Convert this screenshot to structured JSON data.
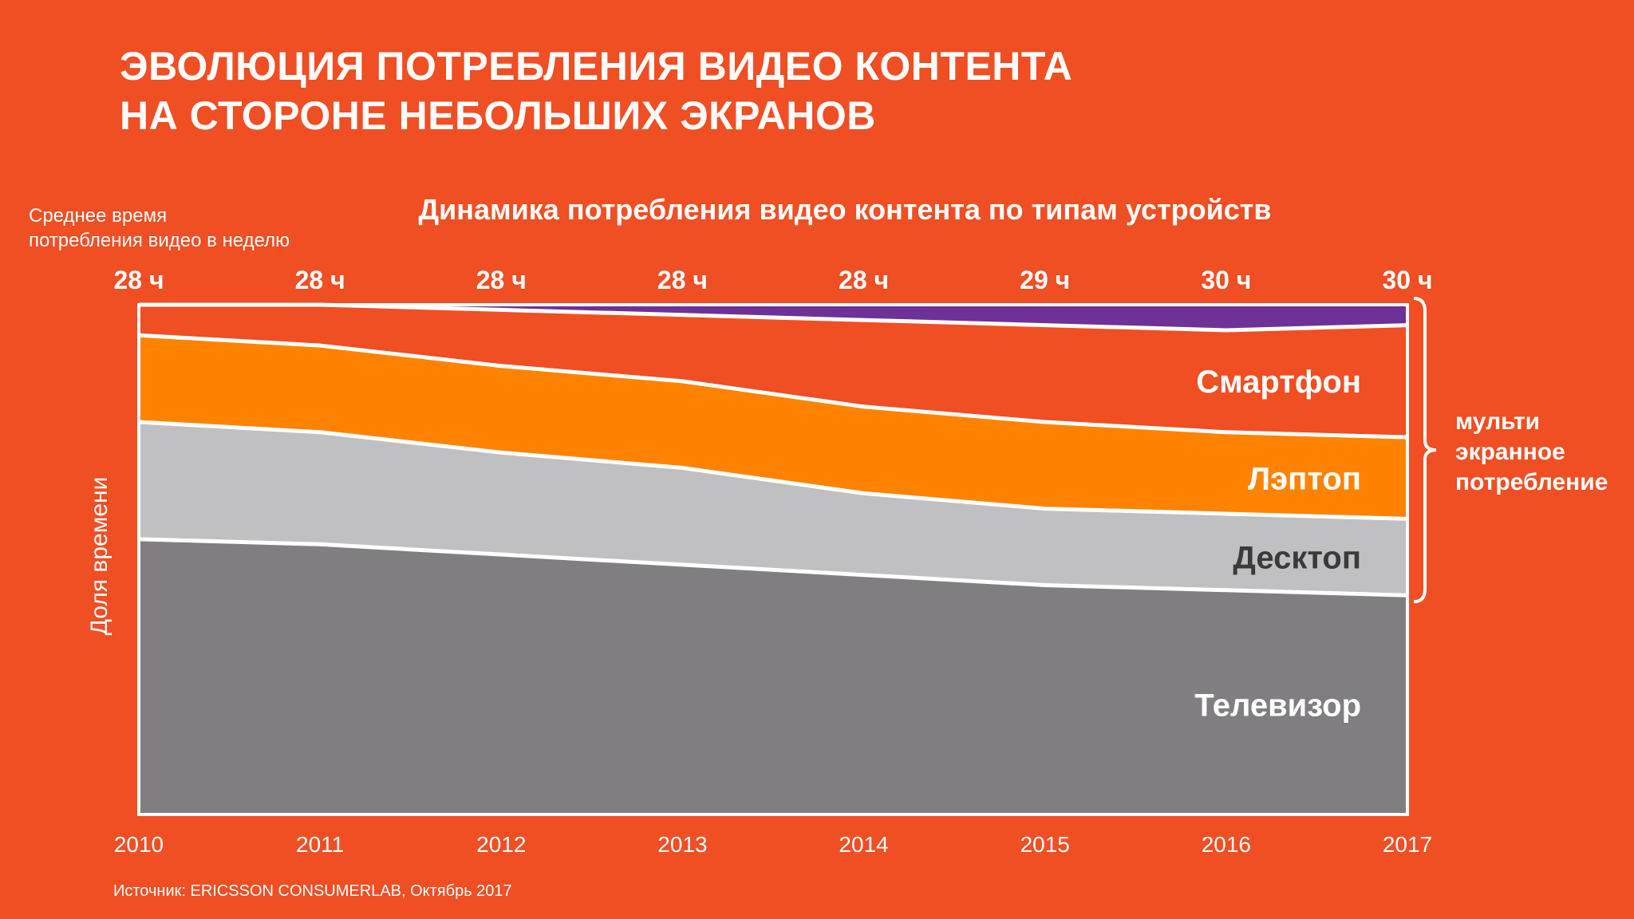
{
  "title": {
    "line1": "ЭВОЛЮЦИЯ ПОТРЕБЛЕНИЯ ВИДЕО КОНТЕНТА",
    "line2": "НА СТОРОНЕ НЕБОЛЬШИХ ЭКРАНОВ"
  },
  "colors": {
    "background": "#f04e23",
    "tv": "#807e81",
    "desktop": "#c0bfc1",
    "laptop": "#ff8300",
    "smartphone": "#f04e23",
    "tablet": "#6e3198",
    "separator": "#ffffff"
  },
  "chart_data": {
    "type": "area",
    "stacked": true,
    "normalized": true,
    "title": "Динамика потребления видео контента по типам устройств",
    "avg_label": [
      "Среднее время",
      "потребления видео в неделю"
    ],
    "ylabel": "Доля времени",
    "x": [
      "2010",
      "2011",
      "2012",
      "2013",
      "2014",
      "2015",
      "2016",
      "2017"
    ],
    "totals_labels": [
      "28 ч",
      "28 ч",
      "28 ч",
      "28 ч",
      "28 ч",
      "29 ч",
      "30 ч",
      "30 ч"
    ],
    "series": [
      {
        "name": "Телевизор",
        "key": "tv",
        "values": [
          0.54,
          0.53,
          0.51,
          0.49,
          0.47,
          0.45,
          0.44,
          0.43
        ]
      },
      {
        "name": "Десктоп",
        "key": "desktop",
        "values": [
          0.23,
          0.22,
          0.2,
          0.19,
          0.16,
          0.15,
          0.15,
          0.15
        ]
      },
      {
        "name": "Лэптоп",
        "key": "laptop",
        "values": [
          0.17,
          0.17,
          0.17,
          0.17,
          0.17,
          0.17,
          0.16,
          0.16
        ]
      },
      {
        "name": "Смартфон",
        "key": "smartphone",
        "values": [
          0.06,
          0.08,
          0.11,
          0.13,
          0.17,
          0.19,
          0.2,
          0.22
        ]
      },
      {
        "name": "",
        "key": "tablet",
        "values": [
          0.0,
          0.0,
          0.01,
          0.02,
          0.03,
          0.04,
          0.05,
          0.04
        ]
      }
    ],
    "ylim": [
      0,
      1
    ],
    "bracket_label": [
      "мульти",
      "экранное",
      "потребление"
    ],
    "source": "Источник: ERICSSON CONSUMERLAB, Октябрь 2017"
  }
}
